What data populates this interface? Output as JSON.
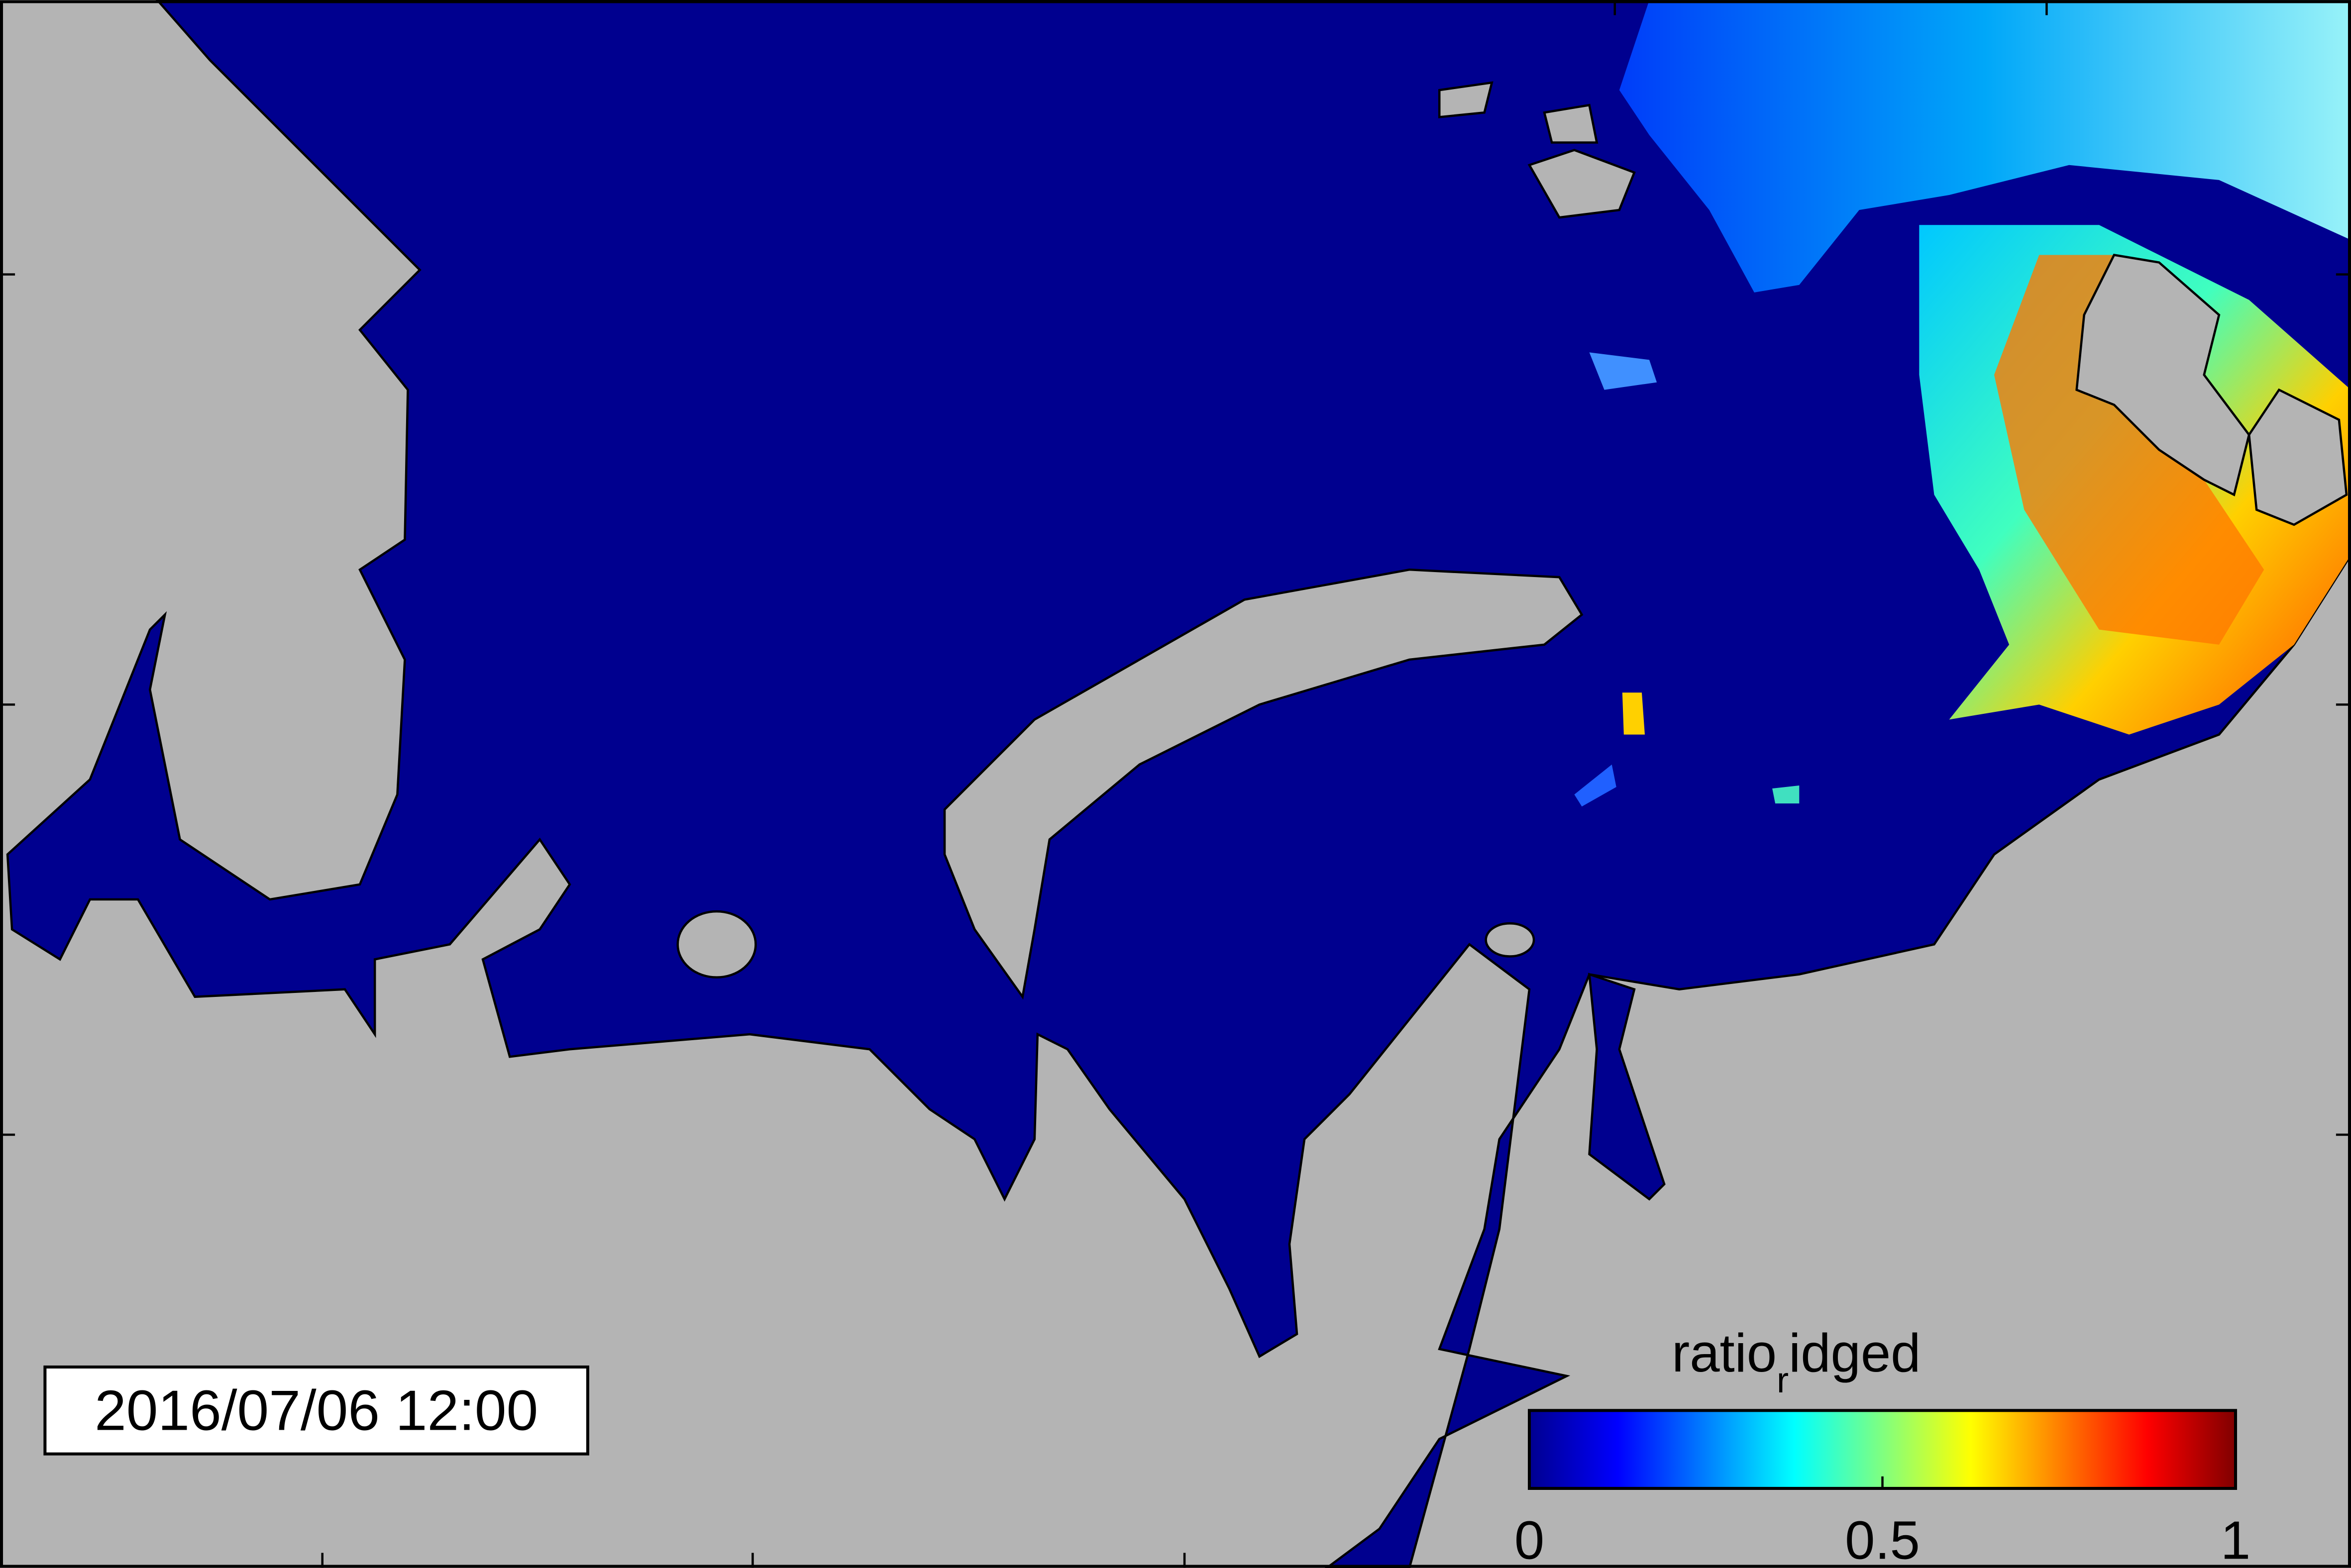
{
  "timestamp": "2016/07/06 12:00",
  "colorbar": {
    "title": "ratio",
    "title_subscript": "r",
    "title_rest": "idged",
    "colormap": "jet",
    "clim": [
      0,
      1
    ],
    "ticks": [
      0,
      0.5,
      1
    ]
  }
}
